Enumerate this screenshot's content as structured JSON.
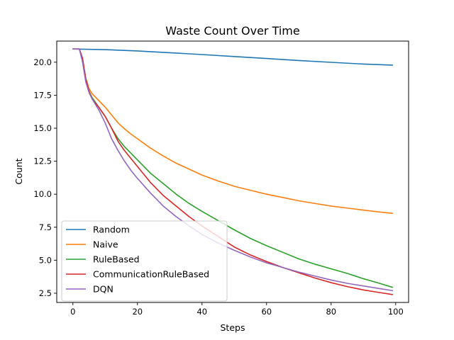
{
  "chart_data": {
    "type": "line",
    "title": "Waste Count Over Time",
    "xlabel": "Steps",
    "ylabel": "Count",
    "xlim": [
      -5,
      104
    ],
    "ylim": [
      1.8,
      21.6
    ],
    "xticks": [
      0,
      20,
      40,
      60,
      80,
      100
    ],
    "yticks": [
      2.5,
      5.0,
      7.5,
      10.0,
      12.5,
      15.0,
      17.5,
      20.0
    ],
    "xtick_labels": [
      "0",
      "20",
      "40",
      "60",
      "80",
      "100"
    ],
    "ytick_labels": [
      "2.5",
      "5.0",
      "7.5",
      "10.0",
      "12.5",
      "15.0",
      "17.5",
      "20.0"
    ],
    "grid": false,
    "legend_position": "lower-left",
    "series": [
      {
        "name": "Random",
        "color": "#1f77b4",
        "x": [
          0,
          10,
          20,
          30,
          40,
          50,
          60,
          70,
          80,
          90,
          99
        ],
        "y": [
          21.0,
          20.95,
          20.85,
          20.72,
          20.58,
          20.43,
          20.28,
          20.13,
          19.99,
          19.86,
          19.78
        ]
      },
      {
        "name": "Naive",
        "color": "#ff7f0e",
        "x": [
          0,
          2,
          3,
          4,
          5,
          6,
          8,
          10,
          12,
          14,
          16,
          18,
          20,
          24,
          28,
          32,
          36,
          40,
          45,
          50,
          55,
          60,
          65,
          70,
          75,
          80,
          85,
          90,
          95,
          99
        ],
        "y": [
          21.0,
          21.0,
          20.2,
          18.8,
          18.0,
          17.6,
          17.1,
          16.6,
          16.0,
          15.4,
          14.95,
          14.55,
          14.2,
          13.5,
          12.9,
          12.35,
          11.9,
          11.45,
          11.0,
          10.6,
          10.3,
          10.0,
          9.75,
          9.5,
          9.3,
          9.1,
          8.95,
          8.8,
          8.65,
          8.55
        ]
      },
      {
        "name": "RuleBased",
        "color": "#2ca02c",
        "x": [
          0,
          2,
          3,
          4,
          5,
          6,
          8,
          10,
          12,
          14,
          16,
          18,
          20,
          24,
          28,
          32,
          36,
          40,
          45,
          50,
          55,
          60,
          65,
          70,
          75,
          80,
          85,
          90,
          95,
          99
        ],
        "y": [
          21.0,
          21.0,
          20.2,
          18.7,
          17.8,
          17.3,
          16.6,
          15.9,
          15.0,
          14.2,
          13.6,
          13.1,
          12.6,
          11.6,
          10.8,
          10.0,
          9.3,
          8.7,
          8.0,
          7.3,
          6.65,
          6.1,
          5.6,
          5.1,
          4.7,
          4.35,
          4.0,
          3.6,
          3.25,
          2.95
        ]
      },
      {
        "name": "CommunicationRuleBased",
        "color": "#d62728",
        "x": [
          0,
          2,
          3,
          4,
          5,
          6,
          8,
          10,
          12,
          14,
          16,
          18,
          20,
          24,
          28,
          32,
          36,
          40,
          45,
          50,
          55,
          60,
          65,
          70,
          75,
          80,
          85,
          90,
          95,
          99
        ],
        "y": [
          21.0,
          21.0,
          20.3,
          18.7,
          17.8,
          17.2,
          16.6,
          15.9,
          15.0,
          14.0,
          13.3,
          12.7,
          12.1,
          10.9,
          9.9,
          9.1,
          8.3,
          7.6,
          6.8,
          6.0,
          5.4,
          4.9,
          4.45,
          4.05,
          3.65,
          3.3,
          3.0,
          2.75,
          2.55,
          2.4
        ]
      },
      {
        "name": "DQN",
        "color": "#9467bd",
        "x": [
          0,
          2,
          3,
          4,
          5,
          6,
          8,
          10,
          12,
          14,
          16,
          18,
          20,
          24,
          28,
          32,
          36,
          40,
          45,
          50,
          55,
          60,
          65,
          70,
          75,
          80,
          85,
          90,
          95,
          99
        ],
        "y": [
          21.0,
          21.0,
          20.0,
          18.5,
          17.7,
          17.2,
          16.4,
          15.4,
          14.2,
          13.3,
          12.5,
          11.8,
          11.2,
          10.1,
          9.1,
          8.3,
          7.6,
          6.95,
          6.3,
          5.75,
          5.25,
          4.8,
          4.45,
          4.1,
          3.8,
          3.5,
          3.25,
          3.05,
          2.85,
          2.7
        ]
      }
    ]
  }
}
